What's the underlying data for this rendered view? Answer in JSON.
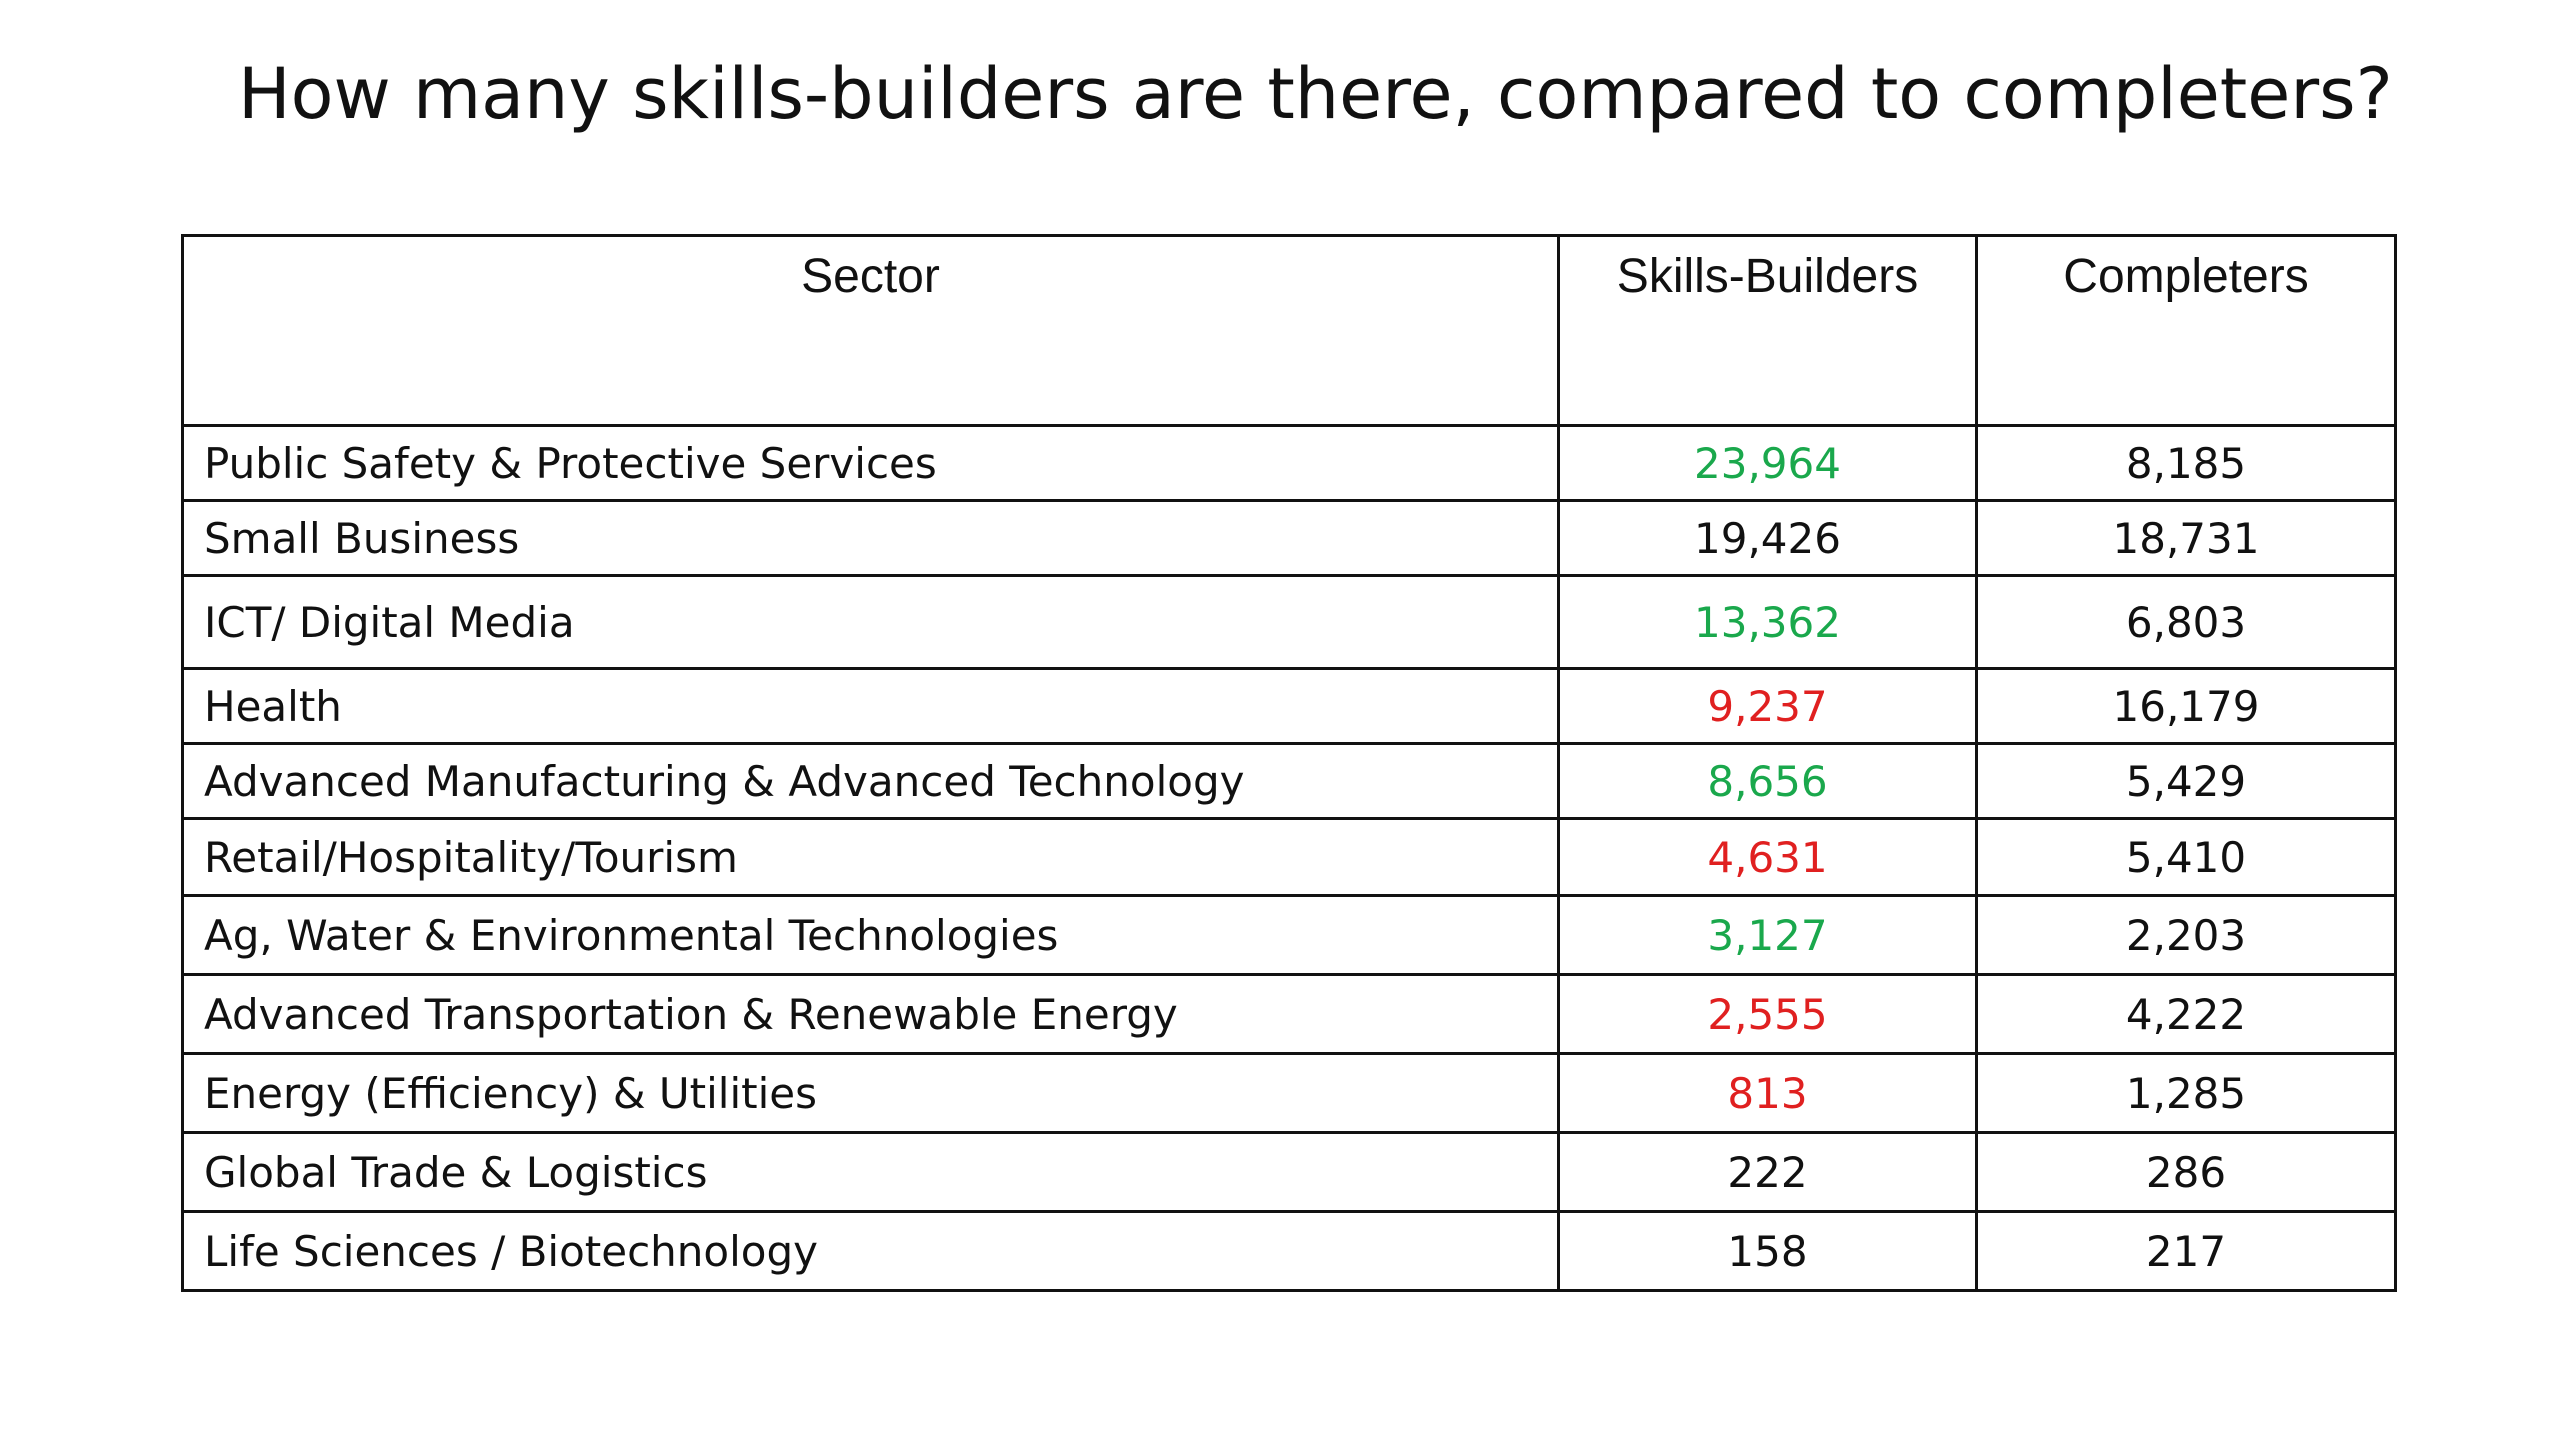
{
  "title": "How many skills-builders are there, compared to completers?",
  "table": {
    "headers": [
      "Sector",
      "Skills-Builders",
      "Completers"
    ],
    "rows": [
      {
        "sector": "Public Safety & Protective Services",
        "skills_builders": "23,964",
        "skills_color": "#1aa84c",
        "completers": "8,185"
      },
      {
        "sector": "Small Business",
        "skills_builders": "19,426",
        "skills_color": "#111111",
        "completers": "18,731"
      },
      {
        "sector": "ICT/ Digital Media",
        "skills_builders": "13,362",
        "skills_color": "#1aa84c",
        "completers": "6,803"
      },
      {
        "sector": "Health",
        "skills_builders": "9,237",
        "skills_color": "#e02020",
        "completers": "16,179"
      },
      {
        "sector": "Advanced Manufacturing & Advanced Technology",
        "skills_builders": "8,656",
        "skills_color": "#1aa84c",
        "completers": "5,429"
      },
      {
        "sector": "Retail/Hospitality/Tourism",
        "skills_builders": "4,631",
        "skills_color": "#e02020",
        "completers": "5,410"
      },
      {
        "sector": "Ag, Water & Environmental Technologies",
        "skills_builders": "3,127",
        "skills_color": "#1aa84c",
        "completers": "2,203"
      },
      {
        "sector": "Advanced Transportation & Renewable Energy",
        "skills_builders": "2,555",
        "skills_color": "#e02020",
        "completers": "4,222"
      },
      {
        "sector": "Energy (Efficiency) & Utilities",
        "skills_builders": "813",
        "skills_color": "#e02020",
        "completers": "1,285"
      },
      {
        "sector": "Global Trade & Logistics",
        "skills_builders": "222",
        "skills_color": "#111111",
        "completers": "286"
      },
      {
        "sector": "Life Sciences / Biotechnology",
        "skills_builders": "158",
        "skills_color": "#111111",
        "completers": "217"
      }
    ]
  }
}
